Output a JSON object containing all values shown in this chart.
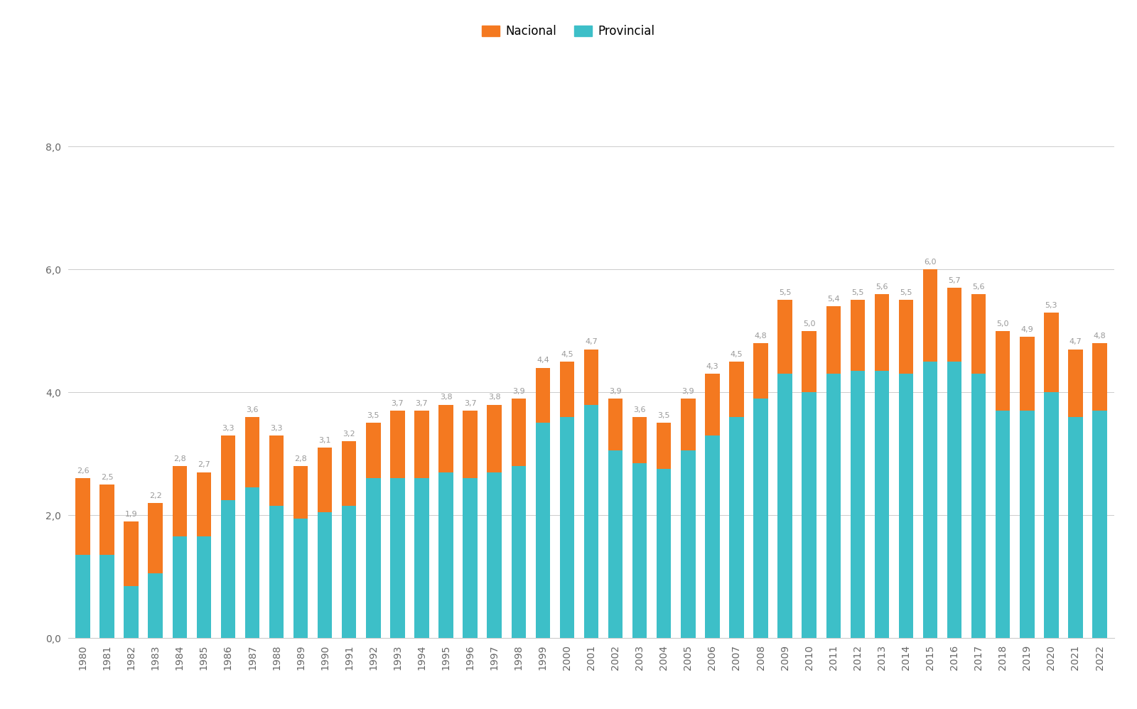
{
  "years": [
    1980,
    1981,
    1982,
    1983,
    1984,
    1985,
    1986,
    1987,
    1988,
    1989,
    1990,
    1991,
    1992,
    1993,
    1994,
    1995,
    1996,
    1997,
    1998,
    1999,
    2000,
    2001,
    2002,
    2003,
    2004,
    2005,
    2006,
    2007,
    2008,
    2009,
    2010,
    2011,
    2012,
    2013,
    2014,
    2015,
    2016,
    2017,
    2018,
    2019,
    2020,
    2021,
    2022
  ],
  "total": [
    2.6,
    2.5,
    1.9,
    2.2,
    2.8,
    2.7,
    3.3,
    3.6,
    3.3,
    2.8,
    3.1,
    3.2,
    3.5,
    3.7,
    3.7,
    3.8,
    3.7,
    3.8,
    3.9,
    4.4,
    4.5,
    4.7,
    3.9,
    3.6,
    3.5,
    3.9,
    4.3,
    4.5,
    4.8,
    5.5,
    5.0,
    5.4,
    5.5,
    5.6,
    5.5,
    6.0,
    5.7,
    5.6,
    5.0,
    4.9,
    5.3,
    4.7,
    4.8
  ],
  "provincial": [
    1.35,
    1.35,
    0.85,
    1.05,
    1.65,
    1.65,
    2.25,
    2.45,
    2.15,
    1.95,
    2.05,
    2.15,
    2.6,
    2.6,
    2.6,
    2.7,
    2.6,
    2.7,
    2.8,
    3.5,
    3.6,
    3.8,
    3.05,
    2.85,
    2.75,
    3.05,
    3.3,
    3.6,
    3.9,
    4.3,
    4.0,
    4.3,
    4.35,
    4.35,
    4.3,
    4.5,
    4.5,
    4.3,
    3.7,
    3.7,
    4.0,
    3.6,
    3.7
  ],
  "nacional_color": "#F47920",
  "provincial_color": "#3DBFC8",
  "background_color": "#FFFFFF",
  "bar_width": 0.6,
  "ylim": [
    0,
    9.0
  ],
  "yticks": [
    0.0,
    2.0,
    4.0,
    6.0,
    8.0
  ],
  "ytick_labels": [
    "0,0",
    "2,0",
    "4,0",
    "6,0",
    "8,0"
  ],
  "label_nacional": "Nacional",
  "label_provincial": "Provincial",
  "label_fontsize": 12,
  "tick_fontsize": 10,
  "annotation_fontsize": 8.0,
  "annotation_color": "#999999"
}
